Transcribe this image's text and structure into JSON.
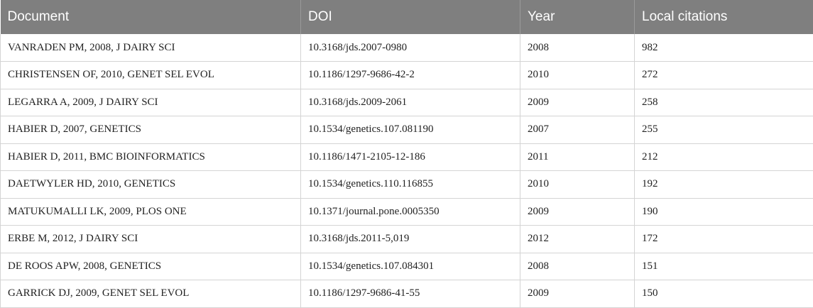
{
  "table": {
    "headers": [
      "Document",
      "DOI",
      "Year",
      "Local citations"
    ],
    "rows": [
      [
        "VANRADEN PM, 2008, J DAIRY SCI",
        "10.3168/jds.2007-0980",
        "2008",
        "982"
      ],
      [
        "CHRISTENSEN OF, 2010, GENET SEL EVOL",
        "10.1186/1297-9686-42-2",
        "2010",
        "272"
      ],
      [
        "LEGARRA A, 2009, J DAIRY SCI",
        "10.3168/jds.2009-2061",
        "2009",
        "258"
      ],
      [
        "HABIER D, 2007, GENETICS",
        "10.1534/genetics.107.081190",
        "2007",
        "255"
      ],
      [
        "HABIER D, 2011, BMC BIOINFORMATICS",
        "10.1186/1471-2105-12-186",
        "2011",
        "212"
      ],
      [
        "DAETWYLER HD, 2010, GENETICS",
        "10.1534/genetics.110.116855",
        "2010",
        "192"
      ],
      [
        "MATUKUMALLI LK, 2009, PLOS ONE",
        "10.1371/journal.pone.0005350",
        "2009",
        "190"
      ],
      [
        "ERBE M, 2012, J DAIRY SCI",
        "10.3168/jds.2011-5,019",
        "2012",
        "172"
      ],
      [
        "DE ROOS APW, 2008, GENETICS",
        "10.1534/genetics.107.084301",
        "2008",
        "151"
      ],
      [
        "GARRICK DJ, 2009, GENET SEL EVOL",
        "10.1186/1297-9686-41-55",
        "2009",
        "150"
      ]
    ]
  },
  "colors": {
    "header_background": "#7f7f7f",
    "header_text": "#ffffff",
    "grid_line": "#d4d4d4"
  }
}
